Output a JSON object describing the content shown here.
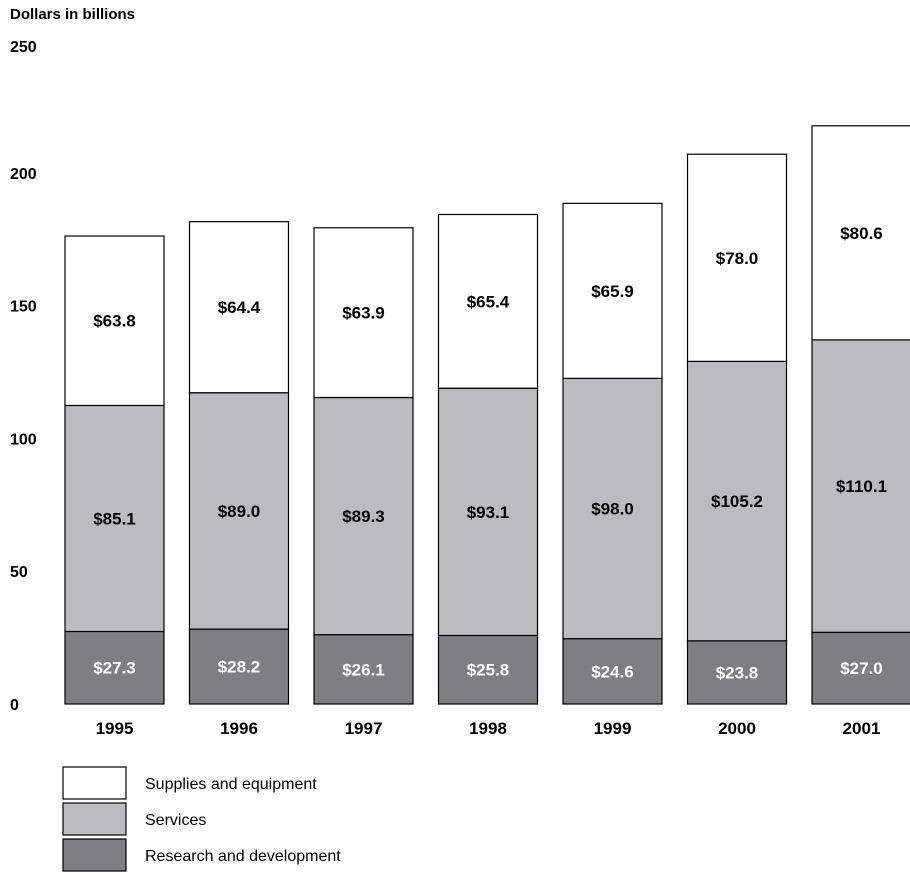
{
  "chart_data": {
    "type": "bar",
    "stacked": true,
    "ylabel": "Dollars in billions",
    "ylim": [
      0,
      250
    ],
    "yticks": [
      "0",
      "50",
      "100",
      "150",
      "200",
      "250"
    ],
    "categories": [
      "1995",
      "1996",
      "1997",
      "1998",
      "1999",
      "2000",
      "2001"
    ],
    "series": [
      {
        "name": "Research and development",
        "color": "#7f7f82",
        "label_color": "#ffffff",
        "values": [
          27.3,
          28.2,
          26.1,
          25.8,
          24.6,
          23.8,
          27.0
        ],
        "labels": [
          "$27.3",
          "$28.2",
          "$26.1",
          "$25.8",
          "$24.6",
          "$23.8",
          "$27.0"
        ]
      },
      {
        "name": "Services",
        "color": "#bcbcbf",
        "label_color": "#000000",
        "values": [
          85.1,
          89.0,
          89.3,
          93.1,
          98.0,
          105.2,
          110.1
        ],
        "labels": [
          "$85.1",
          "$89.0",
          "$89.3",
          "$93.1",
          "$98.0",
          "$105.2",
          "$110.1"
        ]
      },
      {
        "name": "Supplies and equipment",
        "color": "#ffffff",
        "label_color": "#000000",
        "values": [
          63.8,
          64.4,
          63.9,
          65.4,
          65.9,
          78.0,
          80.6
        ],
        "labels": [
          "$63.8",
          "$64.4",
          "$63.9",
          "$65.4",
          "$65.9",
          "$78.0",
          "$80.6"
        ]
      }
    ],
    "legend": [
      "Supplies and equipment",
      "Services",
      "Research and development"
    ],
    "legend_position": "bottom-left",
    "grid": false
  }
}
